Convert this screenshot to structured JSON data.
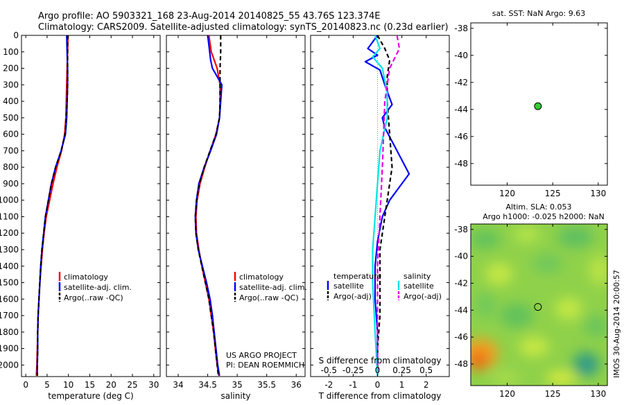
{
  "title_line1": "Argo profile: AO 5903321_168 23-Aug-2014 20140825_55 43.76S 123.374E",
  "title_line2": "Climatology: CARS2009. Satellite-adjusted climatology: synTS_20140823.nc (0.23d earlier)",
  "project_line1": "US ARGO PROJECT",
  "project_line2": "PI: DEAN ROEMMICH",
  "side_credit": "IMOS 30-Aug-2014 20:00:57",
  "colors": {
    "climatology": "#ff0000",
    "satellite": "#0000ff",
    "argo": "#000000",
    "sal_sat": "#00e5e5",
    "sal_argo": "#e600e6",
    "marker": "#33cc33"
  },
  "chart_data": [
    {
      "id": "temperature",
      "type": "line",
      "xlabel": "temperature (deg C)",
      "xlim": [
        -1,
        31.5
      ],
      "ylim": [
        2070,
        0
      ],
      "xticks": [
        0,
        5,
        10,
        15,
        20,
        25,
        30
      ],
      "yticks": [
        0,
        100,
        200,
        300,
        400,
        500,
        600,
        700,
        800,
        900,
        1000,
        1100,
        1200,
        1300,
        1400,
        1500,
        1600,
        1700,
        1800,
        1900,
        2000
      ],
      "legend": [
        "climatology",
        "satellite-adj. clim.",
        "Argo(..raw -QC)"
      ],
      "series": [
        {
          "name": "climatology",
          "color": "#ff0000",
          "dash": "",
          "x": [
            9.9,
            9.8,
            9.7,
            9.6,
            9.5,
            9.4,
            9.1,
            8.4,
            7.3,
            6.4,
            5.6,
            4.8,
            4.3,
            3.9,
            3.6,
            3.3,
            3.1,
            2.9,
            2.8,
            2.7,
            2.6,
            2.5
          ],
          "y": [
            0,
            100,
            200,
            300,
            400,
            500,
            600,
            700,
            800,
            900,
            1000,
            1100,
            1200,
            1300,
            1400,
            1500,
            1600,
            1700,
            1800,
            1900,
            2000,
            2065
          ]
        },
        {
          "name": "satellite-adj. clim.",
          "color": "#0000ff",
          "dash": "",
          "x": [
            9.6,
            9.7,
            9.8,
            9.8,
            9.7,
            9.6,
            9.3,
            8.3,
            7.0,
            6.0,
            5.3,
            4.6,
            4.2,
            3.8,
            3.5,
            3.3,
            3.1,
            2.9,
            2.8,
            2.8,
            2.7,
            2.7
          ],
          "y": [
            0,
            100,
            200,
            300,
            400,
            500,
            600,
            700,
            800,
            900,
            1000,
            1100,
            1200,
            1300,
            1400,
            1500,
            1600,
            1700,
            1800,
            1900,
            2000,
            2065
          ]
        },
        {
          "name": "Argo(..raw -QC)",
          "color": "#000000",
          "dash": "6,4",
          "x": [
            9.8,
            9.8,
            9.8,
            9.8,
            9.7,
            9.5,
            9.2,
            8.3,
            7.0,
            6.0,
            5.3,
            4.6,
            4.2,
            3.8,
            3.5,
            3.3,
            3.1,
            2.9,
            2.8,
            2.8,
            2.7,
            2.7
          ],
          "y": [
            0,
            100,
            200,
            300,
            400,
            500,
            600,
            700,
            800,
            900,
            1000,
            1100,
            1200,
            1300,
            1400,
            1500,
            1600,
            1700,
            1800,
            1900,
            2000,
            2065
          ]
        }
      ]
    },
    {
      "id": "salinity",
      "type": "line",
      "xlabel": "salinity",
      "xlim": [
        33.8,
        36.15
      ],
      "ylim": [
        2070,
        0
      ],
      "xticks": [
        34,
        34.5,
        35,
        35.5,
        36
      ],
      "legend": [
        "climatology",
        "satellite-adj. clim.",
        "Argo(..raw -QC)"
      ],
      "series": [
        {
          "name": "climatology",
          "color": "#ff0000",
          "dash": "",
          "x": [
            34.52,
            34.56,
            34.66,
            34.71,
            34.71,
            34.7,
            34.64,
            34.54,
            34.45,
            34.37,
            34.32,
            34.3,
            34.31,
            34.35,
            34.4,
            34.46,
            34.52,
            34.56,
            34.6,
            34.63,
            34.66,
            34.69
          ],
          "y": [
            0,
            100,
            200,
            300,
            400,
            500,
            600,
            700,
            800,
            900,
            1000,
            1100,
            1200,
            1300,
            1400,
            1500,
            1600,
            1700,
            1800,
            1900,
            2000,
            2065
          ]
        },
        {
          "name": "satellite-adj. clim.",
          "color": "#0000ff",
          "dash": "",
          "x": [
            34.5,
            34.52,
            34.55,
            34.58,
            34.74,
            34.72,
            34.7,
            34.65,
            34.55,
            34.44,
            34.35,
            34.31,
            34.29,
            34.3,
            34.34,
            34.41,
            34.48,
            34.54,
            34.58,
            34.61,
            34.64,
            34.67,
            34.7
          ],
          "y": [
            0,
            60,
            150,
            200,
            300,
            400,
            500,
            600,
            700,
            800,
            900,
            1000,
            1100,
            1200,
            1300,
            1400,
            1500,
            1600,
            1700,
            1800,
            1900,
            2000,
            2065
          ]
        },
        {
          "name": "Argo(..raw -QC)",
          "color": "#000000",
          "dash": "6,4",
          "x": [
            34.72,
            34.72,
            34.71,
            34.71,
            34.71,
            34.7,
            34.64,
            34.54,
            34.44,
            34.36,
            34.31,
            34.29,
            34.3,
            34.34,
            34.4,
            34.46,
            34.52,
            34.56,
            34.6,
            34.63,
            34.66,
            34.68
          ],
          "y": [
            0,
            100,
            200,
            300,
            400,
            500,
            600,
            700,
            800,
            900,
            1000,
            1100,
            1200,
            1300,
            1400,
            1500,
            1600,
            1700,
            1800,
            1900,
            2000,
            2065
          ]
        }
      ]
    },
    {
      "id": "differences",
      "type": "line",
      "xlabel": "T difference from climatology",
      "xlabel_top": "S difference from climatology",
      "xlim": [
        -2.75,
        2.95
      ],
      "ylim": [
        2070,
        0
      ],
      "xticks": [
        -2,
        -1,
        0,
        1,
        2
      ],
      "xticks_s": [
        -0.5,
        -0.25,
        0,
        0.25,
        0.5
      ],
      "legend_headers": [
        "temperature",
        "salinity"
      ],
      "legend": [
        "satellite",
        "Argo(-adj)",
        "satellite",
        "Argo(-adj)"
      ],
      "series": [
        {
          "name": "satellite",
          "color": "#0000ff",
          "dash": "",
          "x": [
            0.0,
            -0.4,
            0.0,
            -0.5,
            0.1,
            0.3,
            0.6,
            0.2,
            0.3,
            0.8,
            1.3,
            1.0,
            0.5,
            0.2,
            0.0,
            -0.1,
            -0.1,
            0.0,
            0.0
          ],
          "y": [
            0,
            80,
            120,
            160,
            210,
            300,
            420,
            500,
            560,
            700,
            840,
            900,
            1000,
            1100,
            1250,
            1400,
            1600,
            1800,
            2065
          ]
        },
        {
          "name": "Argo(-adj)",
          "color": "#000000",
          "dash": "6,4",
          "x": [
            0.0,
            0.3,
            0.5,
            0.4,
            0.4,
            0.5,
            0.6,
            0.4,
            0.3,
            0.1,
            0.1,
            0.1,
            0.0,
            0.0
          ],
          "y": [
            0,
            80,
            150,
            250,
            400,
            600,
            800,
            1000,
            1100,
            1300,
            1500,
            1700,
            1900,
            2065
          ]
        },
        {
          "name": "salinity satellite",
          "color": "#00e5e5",
          "dash": "",
          "x": [
            -0.1,
            0.1,
            -0.2,
            0.2,
            0.4,
            0.4,
            0.1,
            0.0,
            -0.1,
            -0.2,
            -0.2,
            -0.1,
            0.0
          ],
          "y": [
            0,
            80,
            130,
            200,
            350,
            500,
            700,
            900,
            1100,
            1300,
            1500,
            1800,
            2065
          ]
        },
        {
          "name": "salinity Argo(-adj)",
          "color": "#e600e6",
          "dash": "7,4",
          "x": [
            0.8,
            0.9,
            0.5,
            0.3,
            0.2,
            0.1,
            0.0,
            0.0,
            0.0
          ],
          "y": [
            0,
            80,
            200,
            400,
            800,
            1100,
            1400,
            1700,
            2000
          ]
        }
      ]
    },
    {
      "id": "sst_map",
      "type": "scatter",
      "title": "sat. SST: NaN Argo: 9.63",
      "xlim": [
        116,
        131
      ],
      "ylim": [
        -49.6,
        -37.6
      ],
      "xticks": [
        120,
        125,
        130
      ],
      "yticks": [
        -38,
        -40,
        -42,
        -44,
        -46,
        -48
      ],
      "point": {
        "x": 123.374,
        "y": -43.76
      }
    },
    {
      "id": "sla_map",
      "type": "heatmap",
      "title_line1": "Altim. SLA: 0.053",
      "title_line2": "Argo h1000: -0.025 h2000: NaN",
      "xlim": [
        116,
        131
      ],
      "ylim": [
        -49.6,
        -37.6
      ],
      "xticks": [
        120,
        125,
        130
      ],
      "yticks": [
        -38,
        -40,
        -42,
        -44,
        -46,
        -48
      ],
      "point": {
        "x": 123.374,
        "y": -43.76
      }
    }
  ]
}
